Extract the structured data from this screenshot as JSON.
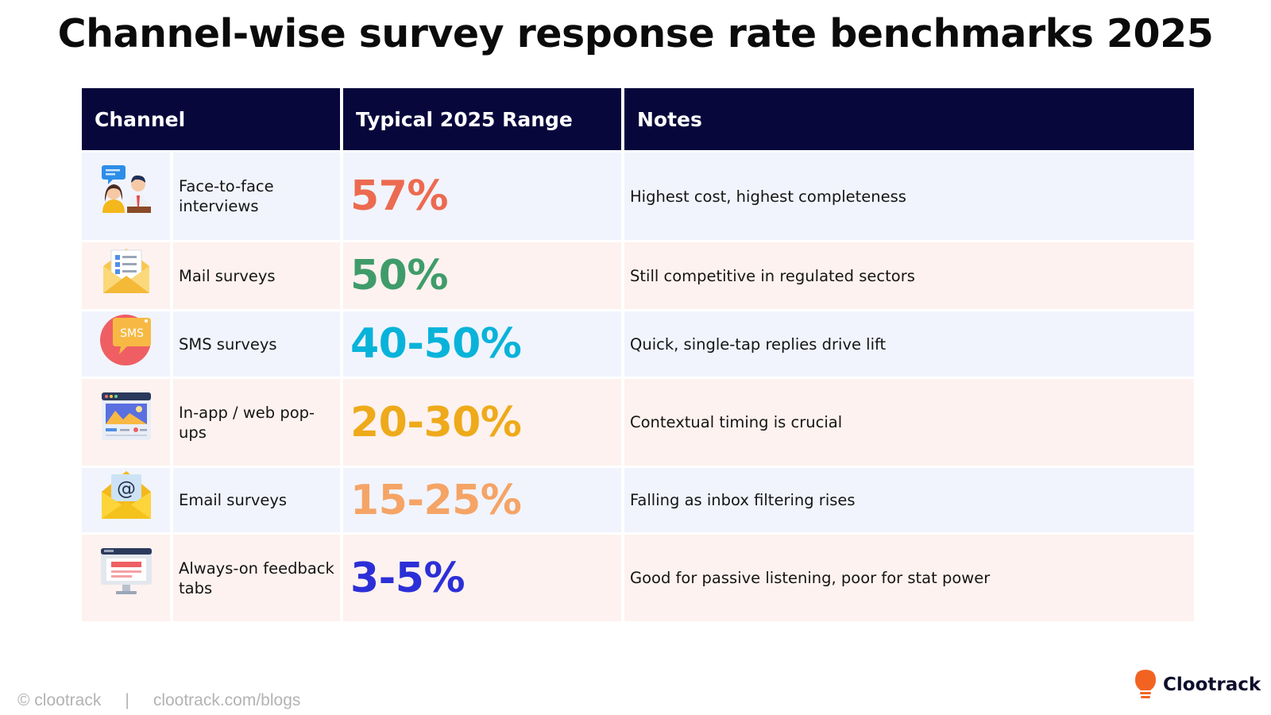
{
  "title": "Channel-wise survey response rate benchmarks 2025",
  "table": {
    "headers": {
      "channel": "Channel",
      "range": "Typical 2025 Range",
      "notes": "Notes"
    },
    "rows": [
      {
        "channel": "Face-to-face interviews",
        "range": "57%",
        "note": "Highest cost, highest completeness",
        "color": "#ec6a50",
        "icon": "face-to-face-interview-icon"
      },
      {
        "channel": "Mail surveys",
        "range": "50%",
        "note": "Still competitive in regulated sectors",
        "color": "#3f9c6a",
        "icon": "mail-envelope-icon"
      },
      {
        "channel": "SMS surveys",
        "range": "40-50%",
        "note": "Quick, single-tap replies drive lift",
        "color": "#08b3d9",
        "icon": "sms-bubble-icon",
        "icon_text": "SMS"
      },
      {
        "channel": "In-app / web pop-ups",
        "range": "20-30%",
        "note": "Contextual timing is crucial",
        "color": "#eeaa1a",
        "icon": "browser-window-icon"
      },
      {
        "channel": "Email surveys",
        "range": "15-25%",
        "note": "Falling as inbox filtering rises",
        "color": "#f5a466",
        "icon": "email-envelope-icon",
        "icon_text": "@"
      },
      {
        "channel": "Always-on feedback tabs",
        "range": "3-5%",
        "note": "Good for passive listening, poor for stat power",
        "color": "#2c2fd7",
        "icon": "monitor-icon"
      }
    ]
  },
  "footer": {
    "copyright": "© clootrack",
    "separator": "|",
    "url": "clootrack.com/blogs"
  },
  "logo": {
    "text": "Clootrack",
    "accent": "#f26322"
  }
}
